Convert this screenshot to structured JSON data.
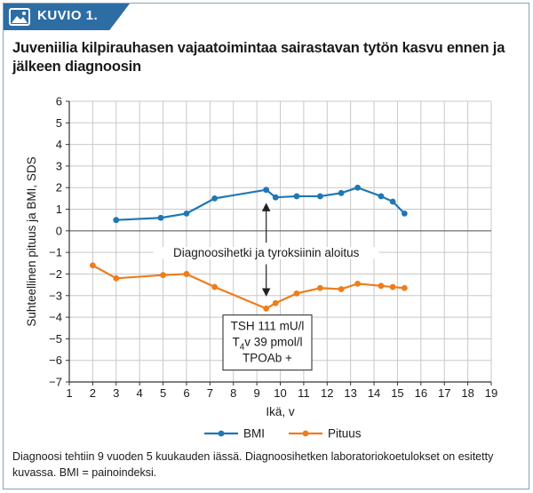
{
  "figure": {
    "tag": "KUVIO 1."
  },
  "caption": "Diagnoosi tehtiin 9 vuoden 5 kuukauden iässä. Diagnoosihetken laboratoriokoetulokset on esitetty kuvassa. BMI = painoindeksi.",
  "chart_data": {
    "type": "line",
    "title": "Juveniilia kilpirauhasen vajaatoimintaa sairastavan tytön kasvu ennen ja jälkeen diagnoosin",
    "xlabel": "Ikä, v",
    "ylabel": "Suhteellinen pituus ja BMI, SDS",
    "xlim": [
      1,
      19
    ],
    "ylim": [
      -7,
      6
    ],
    "xticks": [
      1,
      2,
      3,
      4,
      5,
      6,
      7,
      8,
      9,
      10,
      11,
      12,
      13,
      14,
      15,
      16,
      17,
      18,
      19
    ],
    "yticks": [
      -7,
      -6,
      -5,
      -4,
      -3,
      -2,
      -1,
      0,
      1,
      2,
      3,
      4,
      5,
      6
    ],
    "series": [
      {
        "name": "BMI",
        "color": "#1f77b4",
        "x": [
          3.0,
          4.9,
          6.0,
          7.2,
          9.4,
          9.8,
          10.7,
          11.7,
          12.6,
          13.3,
          14.3,
          14.8,
          15.3
        ],
        "y": [
          0.5,
          0.6,
          0.8,
          1.5,
          1.9,
          1.55,
          1.6,
          1.6,
          1.75,
          2.0,
          1.6,
          1.35,
          0.8
        ]
      },
      {
        "name": "Pituus",
        "color": "#ee7d1c",
        "x": [
          2.0,
          3.0,
          5.0,
          6.0,
          7.2,
          9.4,
          9.8,
          10.7,
          11.7,
          12.6,
          13.3,
          14.3,
          14.8,
          15.3
        ],
        "y": [
          -1.6,
          -2.2,
          -2.05,
          -2.0,
          -2.6,
          -3.6,
          -3.35,
          -2.9,
          -2.65,
          -2.7,
          -2.45,
          -2.55,
          -2.6,
          -2.65
        ]
      }
    ],
    "annotations": {
      "diagnosis_x": 9.4,
      "diagnosis_label": "Diagnoosihetki ja tyroksiinin aloitus",
      "lab_box": {
        "line1": "TSH 111 mU/l",
        "line2_pre": "T",
        "line2_sub": "4",
        "line2_post": "v 39 pmol/l",
        "line3": "TPOAb +"
      }
    },
    "legend": {
      "placement": "bottom-center"
    },
    "grid": true
  }
}
